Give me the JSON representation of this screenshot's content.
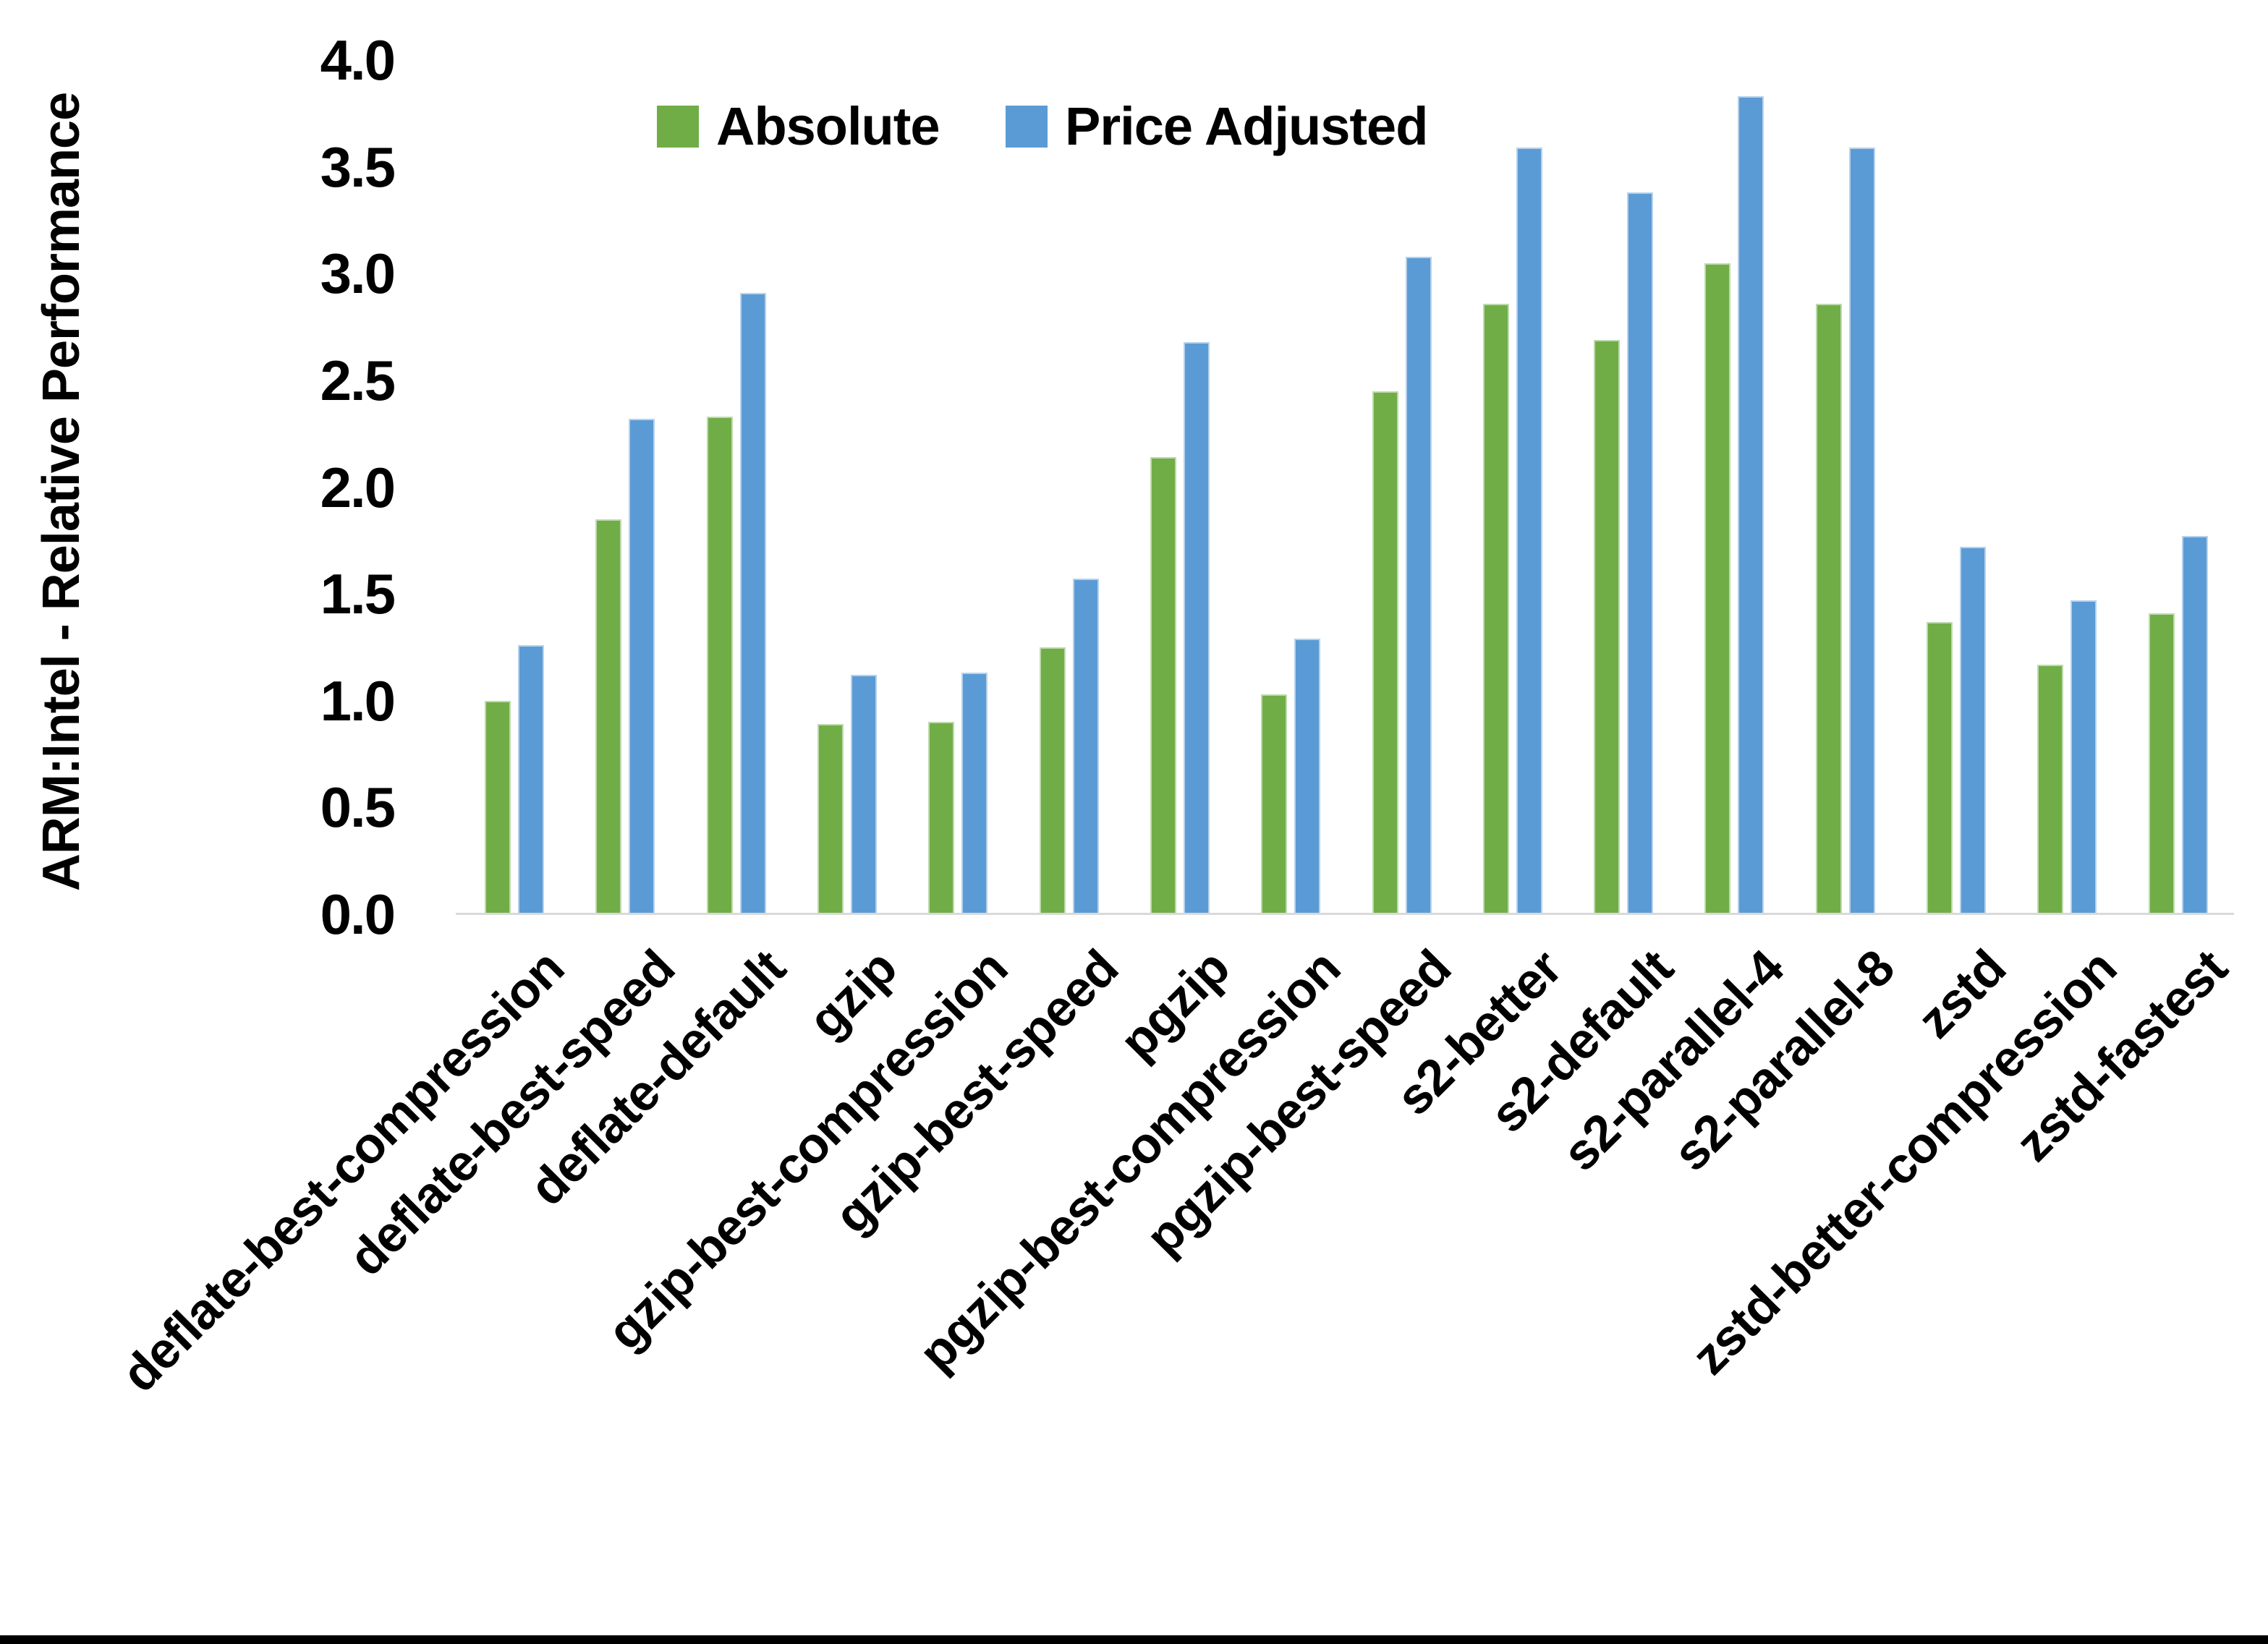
{
  "chart_data": {
    "type": "bar",
    "title": "",
    "xlabel": "",
    "ylabel": "ARM:Intel - Relative Performance",
    "ylim": [
      0.0,
      4.0
    ],
    "ytick_step": 0.5,
    "yticks": [
      "0.0",
      "0.5",
      "1.0",
      "1.5",
      "2.0",
      "2.5",
      "3.0",
      "3.5",
      "4.0"
    ],
    "grid": false,
    "legend_position": "top-center",
    "categories": [
      "deflate-best-compression",
      "deflate-best-speed",
      "deflate-default",
      "gzip",
      "gzip-best-compression",
      "gzip-best-speed",
      "pgzip",
      "pgzip-best-compression",
      "pgzip-best-speed",
      "s2-better",
      "s2-default",
      "s2-parallel-4",
      "s2-parallel-8",
      "zstd",
      "zstd-better-compression",
      "zstd-fastest"
    ],
    "series": [
      {
        "name": "Absolute",
        "color": "#70AD47",
        "values": [
          1.0,
          1.85,
          2.33,
          0.89,
          0.9,
          1.25,
          2.14,
          1.03,
          2.45,
          2.86,
          2.69,
          3.05,
          2.86,
          1.37,
          1.17,
          1.41
        ]
      },
      {
        "name": "Price Adjusted",
        "color": "#5B9BD5",
        "values": [
          1.26,
          2.32,
          2.91,
          1.12,
          1.13,
          1.57,
          2.68,
          1.29,
          3.08,
          3.59,
          3.38,
          3.83,
          3.59,
          1.72,
          1.47,
          1.77
        ]
      }
    ],
    "axis_line_color": "#D9D9D9",
    "text_color": "#000000"
  }
}
